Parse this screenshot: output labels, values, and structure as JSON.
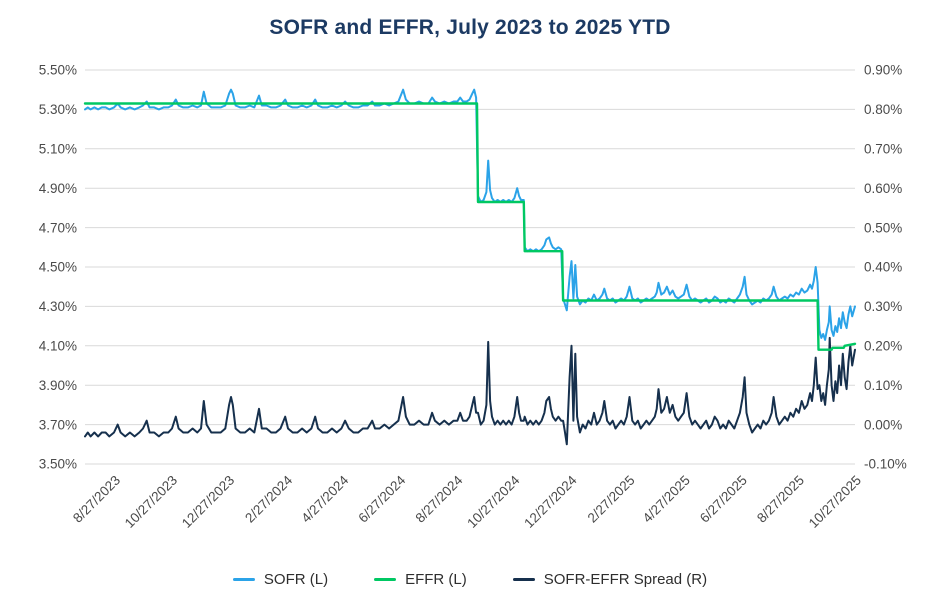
{
  "chart_data": {
    "type": "line",
    "title": "SOFR and EFFR, July 2023 to 2025 YTD",
    "grid": "horizontal-only",
    "legend_position": "bottom-center",
    "colors": {
      "title": "#1c3a63",
      "gridline": "#d9d9d9",
      "axis_text": "#4a4a4a",
      "legend_text": "#2e2e2e",
      "background": "#ffffff"
    },
    "x_axis": {
      "unit": "days since 7/27/2023",
      "start_date": "7/27/2023",
      "end_date": "10/27/2025",
      "max_day": 823,
      "ticks": [
        {
          "day": 31,
          "label": "8/27/2023"
        },
        {
          "day": 92,
          "label": "10/27/2023"
        },
        {
          "day": 153,
          "label": "12/27/2023"
        },
        {
          "day": 215,
          "label": "2/27/2024"
        },
        {
          "day": 275,
          "label": "4/27/2024"
        },
        {
          "day": 336,
          "label": "6/27/2024"
        },
        {
          "day": 397,
          "label": "8/27/2024"
        },
        {
          "day": 458,
          "label": "10/27/2024"
        },
        {
          "day": 519,
          "label": "12/27/2024"
        },
        {
          "day": 581,
          "label": "2/27/2025"
        },
        {
          "day": 640,
          "label": "4/27/2025"
        },
        {
          "day": 701,
          "label": "6/27/2025"
        },
        {
          "day": 762,
          "label": "8/27/2025"
        },
        {
          "day": 823,
          "label": "10/27/2025"
        }
      ]
    },
    "left_axis": {
      "min": 3.5,
      "max": 5.5,
      "tick_step": 0.2,
      "tick_values": [
        5.5,
        5.3,
        5.1,
        4.9,
        4.7,
        4.5,
        4.3,
        4.1,
        3.9,
        3.7,
        3.5
      ],
      "tick_labels": [
        "5.50%",
        "5.30%",
        "5.10%",
        "4.90%",
        "4.70%",
        "4.50%",
        "4.30%",
        "4.10%",
        "3.90%",
        "3.70%",
        "3.50%"
      ]
    },
    "right_axis": {
      "min": -0.1,
      "max": 0.9,
      "tick_step": 0.1,
      "tick_values": [
        0.9,
        0.8,
        0.7,
        0.6,
        0.5,
        0.4,
        0.3,
        0.2,
        0.1,
        0.0,
        -0.1
      ],
      "tick_labels": [
        "0.90%",
        "0.80%",
        "0.70%",
        "0.60%",
        "0.50%",
        "0.40%",
        "0.30%",
        "0.20%",
        "0.10%",
        "0.00%",
        "-0.10%"
      ]
    },
    "series": [
      {
        "name": "SOFR (L)",
        "axis": "left",
        "color": "#2ba3e8",
        "points": [
          [
            0,
            5.3
          ],
          [
            3,
            5.31
          ],
          [
            6,
            5.3
          ],
          [
            10,
            5.31
          ],
          [
            14,
            5.3
          ],
          [
            18,
            5.31
          ],
          [
            22,
            5.31
          ],
          [
            26,
            5.3
          ],
          [
            31,
            5.31
          ],
          [
            35,
            5.33
          ],
          [
            38,
            5.31
          ],
          [
            43,
            5.3
          ],
          [
            48,
            5.31
          ],
          [
            53,
            5.3
          ],
          [
            58,
            5.31
          ],
          [
            62,
            5.32
          ],
          [
            66,
            5.34
          ],
          [
            69,
            5.31
          ],
          [
            74,
            5.31
          ],
          [
            79,
            5.3
          ],
          [
            84,
            5.31
          ],
          [
            89,
            5.31
          ],
          [
            93,
            5.32
          ],
          [
            97,
            5.35
          ],
          [
            100,
            5.32
          ],
          [
            105,
            5.31
          ],
          [
            110,
            5.31
          ],
          [
            115,
            5.32
          ],
          [
            120,
            5.31
          ],
          [
            124,
            5.32
          ],
          [
            127,
            5.39
          ],
          [
            130,
            5.33
          ],
          [
            135,
            5.31
          ],
          [
            140,
            5.31
          ],
          [
            145,
            5.31
          ],
          [
            150,
            5.32
          ],
          [
            154,
            5.38
          ],
          [
            156,
            5.4
          ],
          [
            158,
            5.38
          ],
          [
            161,
            5.32
          ],
          [
            166,
            5.31
          ],
          [
            171,
            5.31
          ],
          [
            176,
            5.32
          ],
          [
            181,
            5.31
          ],
          [
            186,
            5.37
          ],
          [
            189,
            5.32
          ],
          [
            194,
            5.32
          ],
          [
            199,
            5.31
          ],
          [
            204,
            5.31
          ],
          [
            209,
            5.32
          ],
          [
            214,
            5.35
          ],
          [
            217,
            5.32
          ],
          [
            222,
            5.31
          ],
          [
            227,
            5.31
          ],
          [
            232,
            5.32
          ],
          [
            237,
            5.31
          ],
          [
            242,
            5.32
          ],
          [
            246,
            5.35
          ],
          [
            249,
            5.32
          ],
          [
            254,
            5.31
          ],
          [
            259,
            5.31
          ],
          [
            264,
            5.32
          ],
          [
            269,
            5.31
          ],
          [
            274,
            5.32
          ],
          [
            278,
            5.34
          ],
          [
            282,
            5.32
          ],
          [
            287,
            5.31
          ],
          [
            292,
            5.31
          ],
          [
            297,
            5.32
          ],
          [
            302,
            5.32
          ],
          [
            307,
            5.34
          ],
          [
            310,
            5.32
          ],
          [
            315,
            5.32
          ],
          [
            320,
            5.33
          ],
          [
            325,
            5.32
          ],
          [
            330,
            5.33
          ],
          [
            335,
            5.34
          ],
          [
            340,
            5.4
          ],
          [
            343,
            5.35
          ],
          [
            347,
            5.33
          ],
          [
            352,
            5.33
          ],
          [
            357,
            5.34
          ],
          [
            362,
            5.33
          ],
          [
            367,
            5.33
          ],
          [
            371,
            5.36
          ],
          [
            374,
            5.34
          ],
          [
            379,
            5.33
          ],
          [
            384,
            5.34
          ],
          [
            389,
            5.33
          ],
          [
            394,
            5.34
          ],
          [
            398,
            5.34
          ],
          [
            401,
            5.36
          ],
          [
            404,
            5.34
          ],
          [
            408,
            5.34
          ],
          [
            411,
            5.35
          ],
          [
            414,
            5.38
          ],
          [
            416,
            5.4
          ],
          [
            418,
            5.36
          ],
          [
            420,
            4.86
          ],
          [
            423,
            4.83
          ],
          [
            426,
            4.84
          ],
          [
            429,
            4.88
          ],
          [
            431,
            5.04
          ],
          [
            433,
            4.89
          ],
          [
            435,
            4.85
          ],
          [
            438,
            4.83
          ],
          [
            441,
            4.84
          ],
          [
            444,
            4.83
          ],
          [
            447,
            4.84
          ],
          [
            450,
            4.83
          ],
          [
            453,
            4.84
          ],
          [
            456,
            4.83
          ],
          [
            459,
            4.85
          ],
          [
            462,
            4.9
          ],
          [
            464,
            4.86
          ],
          [
            466,
            4.84
          ],
          [
            469,
            4.84
          ],
          [
            470,
            4.6
          ],
          [
            473,
            4.58
          ],
          [
            476,
            4.59
          ],
          [
            479,
            4.58
          ],
          [
            482,
            4.59
          ],
          [
            485,
            4.58
          ],
          [
            488,
            4.59
          ],
          [
            491,
            4.61
          ],
          [
            493,
            4.64
          ],
          [
            496,
            4.65
          ],
          [
            498,
            4.62
          ],
          [
            500,
            4.6
          ],
          [
            503,
            4.59
          ],
          [
            506,
            4.6
          ],
          [
            509,
            4.59
          ],
          [
            511,
            4.34
          ],
          [
            513,
            4.31
          ],
          [
            515,
            4.28
          ],
          [
            518,
            4.45
          ],
          [
            520,
            4.53
          ],
          [
            522,
            4.34
          ],
          [
            524,
            4.51
          ],
          [
            526,
            4.35
          ],
          [
            529,
            4.31
          ],
          [
            532,
            4.33
          ],
          [
            535,
            4.32
          ],
          [
            538,
            4.34
          ],
          [
            541,
            4.33
          ],
          [
            544,
            4.36
          ],
          [
            547,
            4.33
          ],
          [
            550,
            4.34
          ],
          [
            553,
            4.36
          ],
          [
            555,
            4.39
          ],
          [
            558,
            4.34
          ],
          [
            561,
            4.33
          ],
          [
            564,
            4.34
          ],
          [
            567,
            4.32
          ],
          [
            570,
            4.33
          ],
          [
            573,
            4.34
          ],
          [
            576,
            4.33
          ],
          [
            579,
            4.35
          ],
          [
            582,
            4.4
          ],
          [
            585,
            4.34
          ],
          [
            588,
            4.33
          ],
          [
            591,
            4.34
          ],
          [
            594,
            4.32
          ],
          [
            597,
            4.33
          ],
          [
            600,
            4.34
          ],
          [
            603,
            4.33
          ],
          [
            606,
            4.34
          ],
          [
            609,
            4.35
          ],
          [
            611,
            4.37
          ],
          [
            613,
            4.42
          ],
          [
            616,
            4.36
          ],
          [
            619,
            4.37
          ],
          [
            622,
            4.4
          ],
          [
            625,
            4.36
          ],
          [
            628,
            4.38
          ],
          [
            631,
            4.35
          ],
          [
            634,
            4.34
          ],
          [
            637,
            4.35
          ],
          [
            640,
            4.36
          ],
          [
            643,
            4.41
          ],
          [
            646,
            4.35
          ],
          [
            649,
            4.33
          ],
          [
            652,
            4.34
          ],
          [
            655,
            4.33
          ],
          [
            658,
            4.32
          ],
          [
            661,
            4.33
          ],
          [
            664,
            4.34
          ],
          [
            667,
            4.32
          ],
          [
            670,
            4.33
          ],
          [
            673,
            4.35
          ],
          [
            676,
            4.34
          ],
          [
            679,
            4.32
          ],
          [
            682,
            4.33
          ],
          [
            685,
            4.32
          ],
          [
            688,
            4.34
          ],
          [
            691,
            4.33
          ],
          [
            694,
            4.32
          ],
          [
            697,
            4.34
          ],
          [
            700,
            4.36
          ],
          [
            703,
            4.4
          ],
          [
            705,
            4.45
          ],
          [
            707,
            4.36
          ],
          [
            710,
            4.33
          ],
          [
            713,
            4.31
          ],
          [
            716,
            4.32
          ],
          [
            719,
            4.33
          ],
          [
            722,
            4.32
          ],
          [
            725,
            4.34
          ],
          [
            728,
            4.33
          ],
          [
            731,
            4.34
          ],
          [
            734,
            4.36
          ],
          [
            736,
            4.4
          ],
          [
            739,
            4.35
          ],
          [
            742,
            4.33
          ],
          [
            745,
            4.34
          ],
          [
            748,
            4.35
          ],
          [
            751,
            4.34
          ],
          [
            754,
            4.36
          ],
          [
            757,
            4.35
          ],
          [
            760,
            4.37
          ],
          [
            763,
            4.36
          ],
          [
            766,
            4.39
          ],
          [
            769,
            4.37
          ],
          [
            772,
            4.38
          ],
          [
            775,
            4.41
          ],
          [
            777,
            4.39
          ],
          [
            779,
            4.43
          ],
          [
            781,
            4.5
          ],
          [
            783,
            4.42
          ],
          [
            785,
            4.18
          ],
          [
            787,
            4.14
          ],
          [
            789,
            4.16
          ],
          [
            791,
            4.13
          ],
          [
            793,
            4.18
          ],
          [
            795,
            4.22
          ],
          [
            796,
            4.3
          ],
          [
            798,
            4.18
          ],
          [
            800,
            4.15
          ],
          [
            802,
            4.2
          ],
          [
            804,
            4.17
          ],
          [
            806,
            4.24
          ],
          [
            808,
            4.19
          ],
          [
            810,
            4.27
          ],
          [
            812,
            4.22
          ],
          [
            814,
            4.19
          ],
          [
            816,
            4.26
          ],
          [
            818,
            4.3
          ],
          [
            820,
            4.25
          ],
          [
            823,
            4.3
          ]
        ]
      },
      {
        "name": "EFFR (L)",
        "axis": "left",
        "color": "#00c863",
        "points": [
          [
            0,
            5.33
          ],
          [
            419,
            5.33
          ],
          [
            420,
            4.83
          ],
          [
            469,
            4.83
          ],
          [
            470,
            4.58
          ],
          [
            510,
            4.58
          ],
          [
            511,
            4.33
          ],
          [
            783,
            4.33
          ],
          [
            784,
            4.08
          ],
          [
            798,
            4.08
          ],
          [
            799,
            4.09
          ],
          [
            811,
            4.09
          ],
          [
            812,
            4.1
          ],
          [
            823,
            4.11
          ]
        ]
      },
      {
        "name": "SOFR-EFFR Spread (R)",
        "axis": "right",
        "color": "#16304d",
        "derived": "SOFR minus EFFR at each SOFR sample day",
        "key_values": {
          "start": -0.03,
          "mid_2024_range": [
            -0.02,
            0.07
          ],
          "sep_30_2024_peak": 0.21,
          "dec_31_2024_peak": 0.2,
          "oct_2025_end": 0.19
        }
      }
    ]
  },
  "legend": {
    "items": [
      "SOFR (L)",
      "EFFR (L)",
      "SOFR-EFFR Spread (R)"
    ]
  }
}
